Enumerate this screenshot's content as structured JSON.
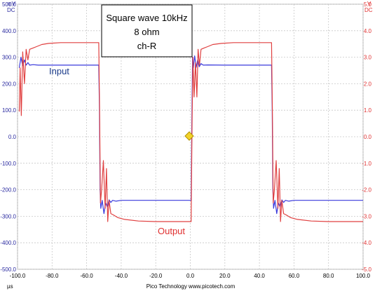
{
  "chart_data": {
    "type": "line",
    "title_lines": [
      "Square wave 10kHz",
      "8 ohm",
      "ch-R"
    ],
    "x_axis": {
      "unit_label": "µs",
      "range": [
        -100,
        100
      ],
      "ticks": [
        "-100.0",
        "-80.0",
        "-60.0",
        "-40.0",
        "-20.0",
        "0.0",
        "20.0",
        "40.0",
        "60.0",
        "80.0",
        "100.0"
      ],
      "tick_values": [
        -100,
        -80,
        -60,
        -40,
        -20,
        0,
        20,
        40,
        60,
        80,
        100
      ]
    },
    "y_left": {
      "unit_label_top": "mV",
      "unit_label_bottom": "DC",
      "range": [
        -500,
        500
      ],
      "ticks": [
        "500.0",
        "400.0",
        "300.0",
        "200.0",
        "100.0",
        "0.0",
        "-100.0",
        "-200.0",
        "-300.0",
        "-400.0",
        "-500.0"
      ],
      "tick_values": [
        500,
        400,
        300,
        200,
        100,
        0,
        -100,
        -200,
        -300,
        -400,
        -500
      ],
      "color": "#2a2aa0"
    },
    "y_right": {
      "unit_label_top": "V",
      "unit_label_bottom": "DC",
      "range": [
        -5,
        5
      ],
      "ticks": [
        "5.0",
        "4.0",
        "3.0",
        "2.0",
        "1.0",
        "0.0",
        "-1.0",
        "-2.0",
        "-3.0",
        "-4.0",
        "-5.0"
      ],
      "tick_values": [
        5,
        4,
        3,
        2,
        1,
        0,
        -1,
        -2,
        -3,
        -4,
        -5
      ],
      "color": "#e03030"
    },
    "grid": true,
    "series": [
      {
        "name": "Input",
        "axis": "left",
        "color": "#3a3adc",
        "high_mV": 270,
        "low_mV": -240,
        "points": [
          [
            -99,
            260
          ],
          [
            -98,
            300
          ],
          [
            -97,
            268
          ],
          [
            -96,
            290
          ],
          [
            -95,
            270
          ],
          [
            -94,
            280
          ],
          [
            -93,
            270
          ],
          [
            -91,
            272
          ],
          [
            -88,
            270
          ],
          [
            -80,
            270
          ],
          [
            -70,
            270
          ],
          [
            -60,
            270
          ],
          [
            -53,
            270
          ],
          [
            -52.6,
            120
          ],
          [
            -52.2,
            -200
          ],
          [
            -51.8,
            -270
          ],
          [
            -51,
            -240
          ],
          [
            -50,
            -290
          ],
          [
            -49,
            -250
          ],
          [
            -48,
            -265
          ],
          [
            -47,
            -238
          ],
          [
            -46,
            -248
          ],
          [
            -45,
            -240
          ],
          [
            -43,
            -243
          ],
          [
            -40,
            -240
          ],
          [
            -20,
            -240
          ],
          [
            0,
            -240
          ],
          [
            0.5,
            -240
          ],
          [
            0.9,
            50
          ],
          [
            1.3,
            300
          ],
          [
            1.8,
            260
          ],
          [
            2.5,
            305
          ],
          [
            3.4,
            262
          ],
          [
            4.3,
            290
          ],
          [
            5.2,
            264
          ],
          [
            6.2,
            276
          ],
          [
            7.5,
            270
          ],
          [
            10,
            271
          ],
          [
            20,
            270
          ],
          [
            40,
            270
          ],
          [
            47,
            270
          ],
          [
            47.4,
            120
          ],
          [
            47.8,
            -200
          ],
          [
            48.2,
            -270
          ],
          [
            49,
            -240
          ],
          [
            50,
            -290
          ],
          [
            51,
            -250
          ],
          [
            52,
            -265
          ],
          [
            53,
            -238
          ],
          [
            54,
            -248
          ],
          [
            55,
            -240
          ],
          [
            57,
            -243
          ],
          [
            60,
            -240
          ],
          [
            80,
            -240
          ],
          [
            100,
            -240
          ]
        ]
      },
      {
        "name": "Output",
        "axis": "right",
        "color": "#e04040",
        "high_V": 3.55,
        "low_V": -3.2,
        "points": [
          [
            -99,
            0.95
          ],
          [
            -98.5,
            2.6
          ],
          [
            -97.8,
            0.8
          ],
          [
            -97,
            3.2
          ],
          [
            -96,
            2.0
          ],
          [
            -95,
            3.3
          ],
          [
            -94,
            2.9
          ],
          [
            -93,
            3.3
          ],
          [
            -91,
            3.35
          ],
          [
            -89,
            3.4
          ],
          [
            -86,
            3.48
          ],
          [
            -82,
            3.52
          ],
          [
            -75,
            3.55
          ],
          [
            -60,
            3.55
          ],
          [
            -53,
            3.55
          ],
          [
            -52.5,
            1.0
          ],
          [
            -52,
            -2.5
          ],
          [
            -51.3,
            -2.0
          ],
          [
            -50.3,
            -0.9
          ],
          [
            -49.3,
            -2.7
          ],
          [
            -48.5,
            -1.2
          ],
          [
            -47.8,
            -3.2
          ],
          [
            -47,
            -2.4
          ],
          [
            -46,
            -2.9
          ],
          [
            -44.5,
            -2.95
          ],
          [
            -42,
            -3.05
          ],
          [
            -38,
            -3.12
          ],
          [
            -30,
            -3.18
          ],
          [
            -20,
            -3.2
          ],
          [
            0,
            -3.2
          ],
          [
            0.5,
            -3.2
          ],
          [
            1.0,
            0.5
          ],
          [
            1.5,
            3.0
          ],
          [
            2.2,
            1.5
          ],
          [
            3.0,
            2.8
          ],
          [
            3.8,
            1.5
          ],
          [
            4.5,
            3.3
          ],
          [
            5.3,
            2.7
          ],
          [
            6.2,
            3.3
          ],
          [
            8,
            3.35
          ],
          [
            10,
            3.4
          ],
          [
            13,
            3.48
          ],
          [
            18,
            3.52
          ],
          [
            25,
            3.55
          ],
          [
            40,
            3.55
          ],
          [
            47,
            3.55
          ],
          [
            47.5,
            1.0
          ],
          [
            48,
            -2.5
          ],
          [
            48.7,
            -2.0
          ],
          [
            49.7,
            -0.9
          ],
          [
            50.7,
            -2.7
          ],
          [
            51.5,
            -1.2
          ],
          [
            52.2,
            -3.2
          ],
          [
            53,
            -2.4
          ],
          [
            54,
            -2.9
          ],
          [
            55.5,
            -2.95
          ],
          [
            58,
            -3.05
          ],
          [
            62,
            -3.12
          ],
          [
            70,
            -3.18
          ],
          [
            80,
            -3.2
          ],
          [
            100,
            -3.2
          ]
        ]
      }
    ],
    "annotations": [
      {
        "text": "Input",
        "color": "#1a3a8a"
      },
      {
        "text": "Output",
        "color": "#e03030"
      }
    ],
    "trigger_marker_color": "#f2d22a"
  },
  "footer_text": "Pico Technology  www.picotech.com"
}
